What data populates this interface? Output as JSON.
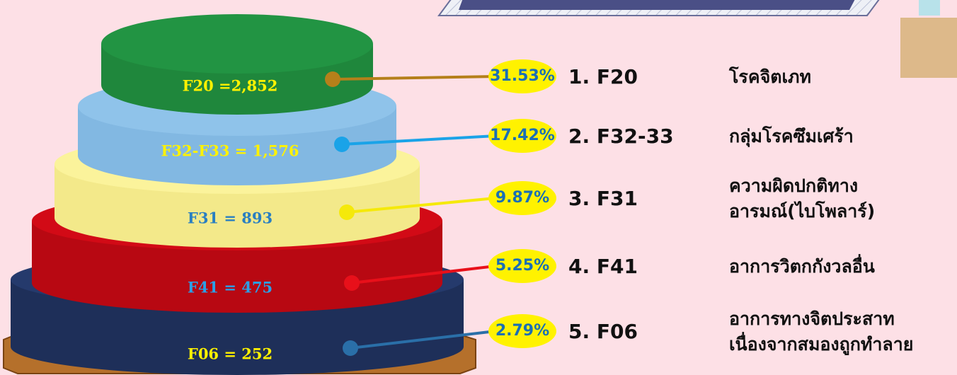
{
  "items": [
    {
      "tier_label": "F20 =2,852",
      "percent": "31.53%",
      "rank": "1. F20",
      "description": [
        "โรคจิตเภท"
      ]
    },
    {
      "tier_label": "F32-F33 = 1,576",
      "percent": "17.42%",
      "rank": "2. F32-33",
      "description": [
        "กลุ่มโรคซึมเศร้า"
      ]
    },
    {
      "tier_label": "F31 = 893",
      "percent": "9.87%",
      "rank": "3. F31",
      "description": [
        "ความผิดปกติทาง",
        "อารมณ์(ไบโพลาร์)"
      ]
    },
    {
      "tier_label": "F41 = 475",
      "percent": "5.25%",
      "rank": "4. F41",
      "description": [
        "อาการวิตกกังวลอื่น"
      ]
    },
    {
      "tier_label": "F06 = 252",
      "percent": "2.79%",
      "rank": "5. F06",
      "description": [
        "อาการทางจิตประสาท",
        "เนื่องจากสมองถูกทำลาย"
      ]
    }
  ]
}
